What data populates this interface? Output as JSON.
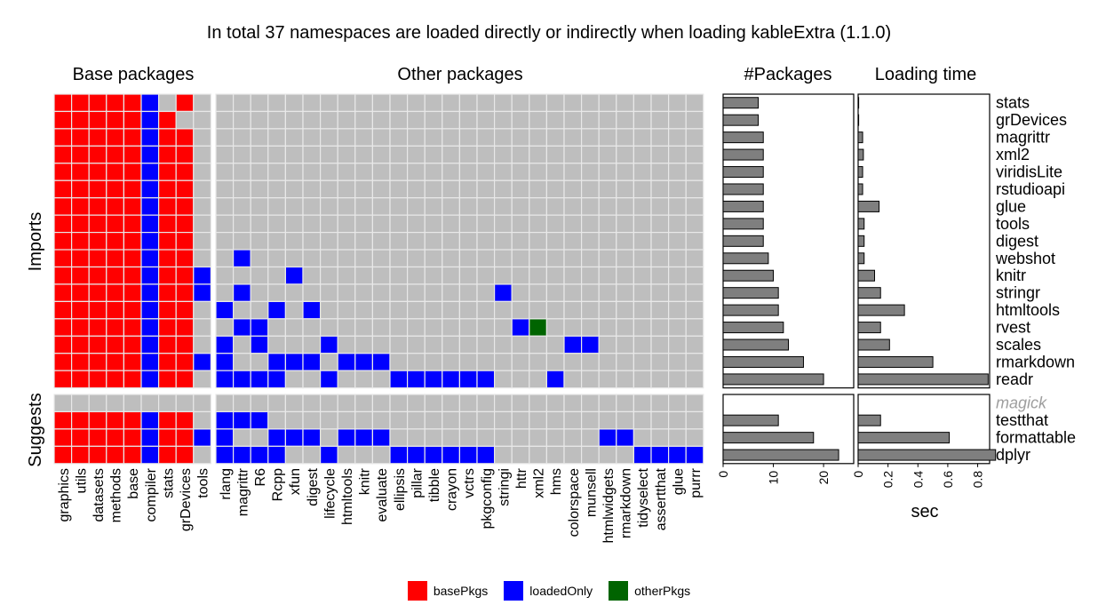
{
  "colors": {
    "basePkgs": "#ff0000",
    "loadedOnly": "#0000ff",
    "otherPkgs": "#006400",
    "empty": "#bebebe",
    "cellBorder": "#e8e8e8",
    "bar": "#7f7f7f",
    "magick": "#9e9e9e"
  },
  "chart_data": [
    {
      "type": "heatmap",
      "title": "In total 37 namespaces are loaded directly or indirectly when loading kableExtra (1.1.0)",
      "panels": [
        {
          "label": "Base packages",
          "columns": [
            "graphics",
            "utils",
            "datasets",
            "methods",
            "base",
            "compiler",
            "stats",
            "grDevices",
            "tools"
          ]
        },
        {
          "label": "Other packages",
          "columns": [
            "rlang",
            "magrittr",
            "R6",
            "Rcpp",
            "xfun",
            "digest",
            "lifecycle",
            "htmltools",
            "knitr",
            "evaluate",
            "ellipsis",
            "pillar",
            "tibble",
            "crayon",
            "vctrs",
            "pkgconfig",
            "stringi",
            "httr",
            "xml2",
            "hms",
            "colorspace",
            "munsell",
            "htmlwidgets",
            "rmarkdown",
            "tidyselect",
            "assertthat",
            "glue",
            "purrr"
          ]
        }
      ],
      "row_groups": [
        {
          "label": "Imports",
          "rows": [
            "stats",
            "grDevices",
            "magrittr",
            "xml2",
            "viridisLite",
            "rstudioapi",
            "glue",
            "tools",
            "digest",
            "webshot",
            "knitr",
            "stringr",
            "htmltools",
            "rvest",
            "scales",
            "rmarkdown",
            "readr"
          ]
        },
        {
          "label": "Suggests",
          "rows": [
            "magick",
            "testthat",
            "formattable",
            "dplyr"
          ]
        }
      ],
      "cell_codes": {
        "R": "basePkgs",
        "B": "loadedOnly",
        "G": "otherPkgs",
        ".": "none"
      },
      "cells": {
        "stats": {
          "base": "RRRRRB.R.",
          "other": "............................"
        },
        "grDevices": {
          "base": "RRRRRBR..",
          "other": "............................"
        },
        "magrittr": {
          "base": "RRRRRBRR.",
          "other": "............................"
        },
        "xml2": {
          "base": "RRRRRBRR.",
          "other": "............................"
        },
        "viridisLite": {
          "base": "RRRRRBRR.",
          "other": "............................"
        },
        "rstudioapi": {
          "base": "RRRRRBRR.",
          "other": "............................"
        },
        "glue": {
          "base": "RRRRRBRR.",
          "other": "............................"
        },
        "tools": {
          "base": "RRRRRBRR.",
          "other": "............................"
        },
        "digest": {
          "base": "RRRRRBRR.",
          "other": "............................"
        },
        "webshot": {
          "base": "RRRRRBRR.",
          "other": ".B.........................."
        },
        "knitr": {
          "base": "RRRRRBRRB",
          "other": "....B......................."
        },
        "stringr": {
          "base": "RRRRRBRRB",
          "other": ".B..............B..........."
        },
        "htmltools": {
          "base": "RRRRRBRR.",
          "other": "B..B.B......................"
        },
        "rvest": {
          "base": "RRRRRBRR.",
          "other": ".BB..............BG........."
        },
        "scales": {
          "base": "RRRRRBRR.",
          "other": "B.B...B.............BB......"
        },
        "rmarkdown": {
          "base": "RRRRRBRRB",
          "other": "B..BBB.BBB.................."
        },
        "readr": {
          "base": "RRRRRBRR.",
          "other": "BBBB..B...BBBBBB...B........"
        },
        "magick": {
          "base": ".........",
          "other": "............................"
        },
        "testthat": {
          "base": "RRRRRBRR.",
          "other": "BBB........................."
        },
        "formattable": {
          "base": "RRRRRBRRB",
          "other": "B..BBB.BBB............BB...."
        },
        "dplyr": {
          "base": "RRRRRBRR.",
          "other": "BBBB..B...BBBBBB........BBBB"
        }
      },
      "legend": [
        "basePkgs",
        "loadedOnly",
        "otherPkgs"
      ]
    },
    {
      "type": "bar",
      "title": "#Packages",
      "orientation": "horizontal",
      "xlim": [
        0,
        26
      ],
      "ticks": [
        0,
        10,
        20
      ],
      "groups": [
        {
          "categories": [
            "stats",
            "grDevices",
            "magrittr",
            "xml2",
            "viridisLite",
            "rstudioapi",
            "glue",
            "tools",
            "digest",
            "webshot",
            "knitr",
            "stringr",
            "htmltools",
            "rvest",
            "scales",
            "rmarkdown",
            "readr"
          ],
          "values": [
            7,
            7,
            8,
            8,
            8,
            8,
            8,
            8,
            8,
            9,
            10,
            11,
            11,
            12,
            13,
            16,
            20
          ]
        },
        {
          "categories": [
            "magick",
            "testthat",
            "formattable",
            "dplyr"
          ],
          "values": [
            null,
            11,
            18,
            23
          ]
        }
      ]
    },
    {
      "type": "bar",
      "title": "Loading time",
      "orientation": "horizontal",
      "xlabel": "sec",
      "xlim": [
        0,
        0.88
      ],
      "ticks": [
        0,
        0.2,
        0.4,
        0.6,
        0.8
      ],
      "tick_labels": [
        "0",
        "0.2",
        "0.4",
        "0.6",
        "0.8"
      ],
      "groups": [
        {
          "categories": [
            "stats",
            "grDevices",
            "magrittr",
            "xml2",
            "viridisLite",
            "rstudioapi",
            "glue",
            "tools",
            "digest",
            "webshot",
            "knitr",
            "stringr",
            "htmltools",
            "rvest",
            "scales",
            "rmarkdown",
            "readr"
          ],
          "values": [
            0.003,
            0.003,
            0.03,
            0.035,
            0.03,
            0.03,
            0.14,
            0.04,
            0.04,
            0.04,
            0.11,
            0.15,
            0.31,
            0.15,
            0.21,
            0.5,
            0.87
          ]
        },
        {
          "categories": [
            "magick",
            "testthat",
            "formattable",
            "dplyr"
          ],
          "values": [
            null,
            0.15,
            0.61,
            0.92
          ]
        }
      ]
    }
  ]
}
